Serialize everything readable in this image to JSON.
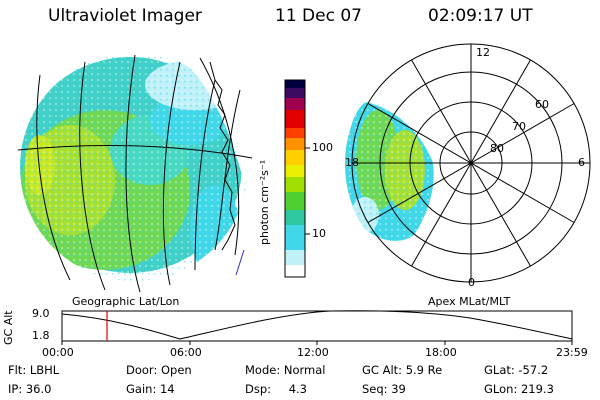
{
  "header": {
    "instrument": "Ultraviolet Imager",
    "date": "11 Dec 07",
    "time": "02:09:17 UT"
  },
  "panels": {
    "left_label": "Geographic Lat/Lon",
    "right_label": "Apex MLat/MLT"
  },
  "colorbar": {
    "unit_label": "photon cm⁻²s⁻¹",
    "ticks": [
      "100",
      "10"
    ],
    "colors": [
      "#000040",
      "#3a0a60",
      "#a00050",
      "#e00000",
      "#ff4000",
      "#ff9000",
      "#ffd000",
      "#e8f000",
      "#a0e000",
      "#50d030",
      "#30c8a0",
      "#40d8e8",
      "#c0f0f8",
      "#ffffff"
    ]
  },
  "polar": {
    "mlt_labels": [
      "12",
      "6",
      "0",
      "18"
    ],
    "mlat_labels": [
      "60",
      "70",
      "80"
    ]
  },
  "altitude_plot": {
    "ylabel": "GC Alt",
    "yticks": [
      "9.0",
      "1.8"
    ],
    "xticks": [
      "00:00",
      "06:00",
      "12:00",
      "18:00",
      "23:59"
    ],
    "marker_color": "#e00000"
  },
  "info": {
    "row1": [
      {
        "key": "Flt:",
        "value": "LBHL"
      },
      {
        "key": "Door:",
        "value": "Open"
      },
      {
        "key": "Mode:",
        "value": "Normal"
      },
      {
        "key": "GC Alt:",
        "value": "5.9 Re"
      },
      {
        "key": "GLat:",
        "value": "-57.2"
      }
    ],
    "row2": [
      {
        "key": "IP:",
        "value": "36.0"
      },
      {
        "key": "Gain:",
        "value": "14"
      },
      {
        "key": "Dsp:",
        "value": "4.3"
      },
      {
        "key": "Seq:",
        "value": "39"
      },
      {
        "key": "GLon:",
        "value": "219.3"
      }
    ]
  }
}
